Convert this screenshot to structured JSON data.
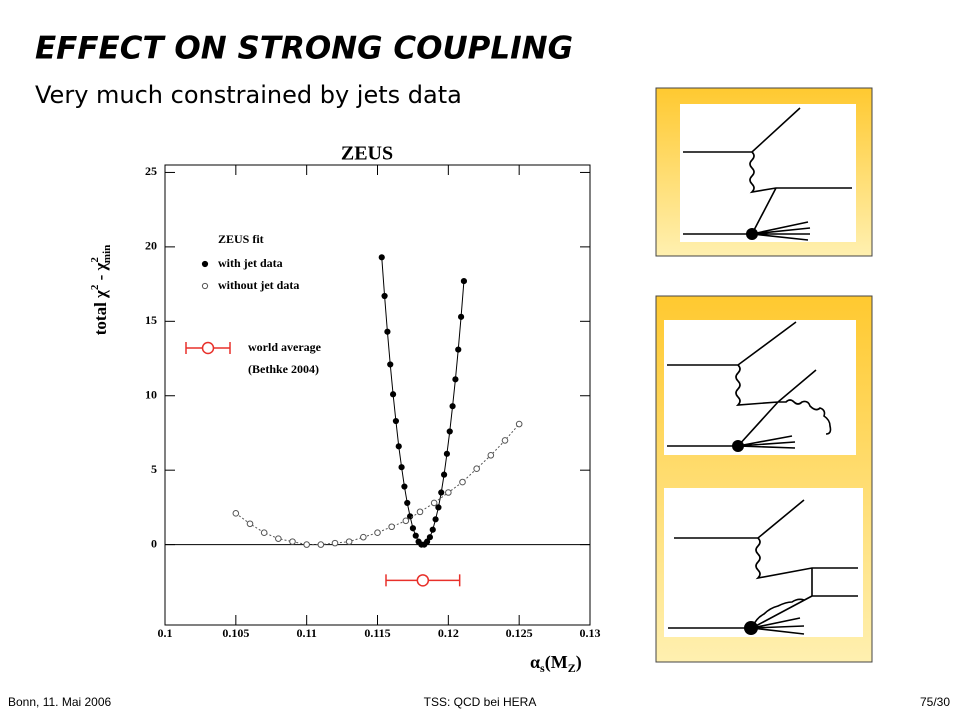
{
  "slide": {
    "title": "EFFECT ON STRONG COUPLING",
    "subtitle": "Very much constrained by jets data",
    "footer_left": "Bonn, 11. Mai 2006",
    "footer_center": "TSS: QCD bei HERA",
    "footer_right": "75/30"
  },
  "chart_data": {
    "type": "scatter",
    "title": "ZEUS",
    "x_label_parts": [
      "α",
      "s",
      "(M",
      "Z",
      ")"
    ],
    "y_label_parts": [
      "total χ",
      "2",
      " - χ",
      "2",
      "min"
    ],
    "legend_title": "ZEUS fit",
    "xlim": [
      0.1,
      0.13
    ],
    "xticks": [
      0.1,
      0.105,
      0.11,
      0.115,
      0.12,
      0.125,
      0.13
    ],
    "ylim": [
      -5.4,
      25.5
    ],
    "yticks": [
      0,
      5,
      10,
      15,
      20,
      25
    ],
    "series": [
      {
        "name": "with jet data",
        "color": "#000000",
        "marker": "filled",
        "line": "solid",
        "x": [
          0.1153,
          0.1155,
          0.1157,
          0.1159,
          0.1161,
          0.1163,
          0.1165,
          0.1167,
          0.1169,
          0.1171,
          0.1173,
          0.1175,
          0.1177,
          0.1179,
          0.1181,
          0.1183,
          0.1185,
          0.1187,
          0.1189,
          0.1191,
          0.1193,
          0.1195,
          0.1197,
          0.1199,
          0.1201,
          0.1203,
          0.1205,
          0.1207,
          0.1209,
          0.1211
        ],
        "values": [
          19.3,
          16.7,
          14.3,
          12.1,
          10.1,
          8.3,
          6.6,
          5.2,
          3.9,
          2.8,
          1.9,
          1.1,
          0.6,
          0.2,
          0.0,
          0.0,
          0.2,
          0.5,
          1.0,
          1.7,
          2.5,
          3.5,
          4.7,
          6.1,
          7.6,
          9.3,
          11.1,
          13.1,
          15.3,
          17.7
        ]
      },
      {
        "name": "without jet data",
        "color": "#555555",
        "marker": "open",
        "line": "dotted",
        "x": [
          0.105,
          0.106,
          0.107,
          0.108,
          0.109,
          0.11,
          0.111,
          0.112,
          0.113,
          0.114,
          0.115,
          0.116,
          0.117,
          0.118,
          0.119,
          0.12,
          0.121,
          0.122,
          0.123,
          0.124,
          0.125
        ],
        "values": [
          2.1,
          1.4,
          0.8,
          0.4,
          0.2,
          0.0,
          0.0,
          0.1,
          0.2,
          0.5,
          0.8,
          1.2,
          1.6,
          2.2,
          2.8,
          3.5,
          4.2,
          5.1,
          6.0,
          7.0,
          8.1
        ]
      }
    ],
    "world_average": {
      "label_lines": [
        "world average",
        "(Bethke 2004)"
      ],
      "color": "#e8302a",
      "x": 0.1182,
      "y": -2.4,
      "xerr": 0.0026
    }
  }
}
